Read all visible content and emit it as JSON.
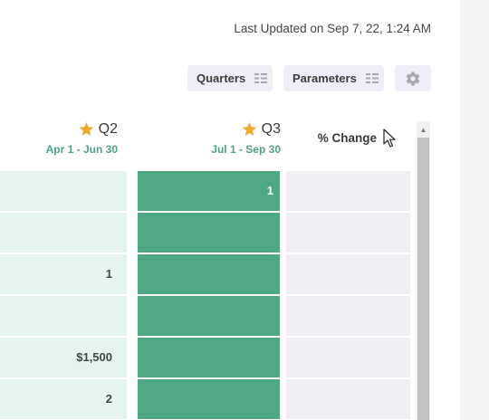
{
  "header": {
    "last_updated": "Last Updated on Sep 7, 22, 1:24 AM"
  },
  "toolbar": {
    "quarters_label": "Quarters",
    "parameters_label": "Parameters",
    "settings_icon": "gear-icon"
  },
  "table": {
    "columns": [
      {
        "label": "Q2",
        "range": "Apr 1 - Jun 30",
        "icon": "star-icon"
      },
      {
        "label": "Q3",
        "range": "Jul 1 - Sep 30",
        "icon": "star-icon"
      },
      {
        "label": "% Change"
      }
    ],
    "q2_values": [
      "",
      "",
      "1",
      "",
      "$1,500",
      "2"
    ],
    "q3_values": [
      "1",
      "",
      "",
      "",
      "",
      ""
    ],
    "pct_values": [
      "",
      "",
      "",
      "",
      "",
      ""
    ]
  },
  "colors": {
    "q2_cell": "#e3f5ee",
    "q3_cell": "#4ea883",
    "pct_cell": "#f2eff4",
    "accent_text": "#4fa283",
    "star": "#f0a92e",
    "button_bg": "#efedf7"
  }
}
